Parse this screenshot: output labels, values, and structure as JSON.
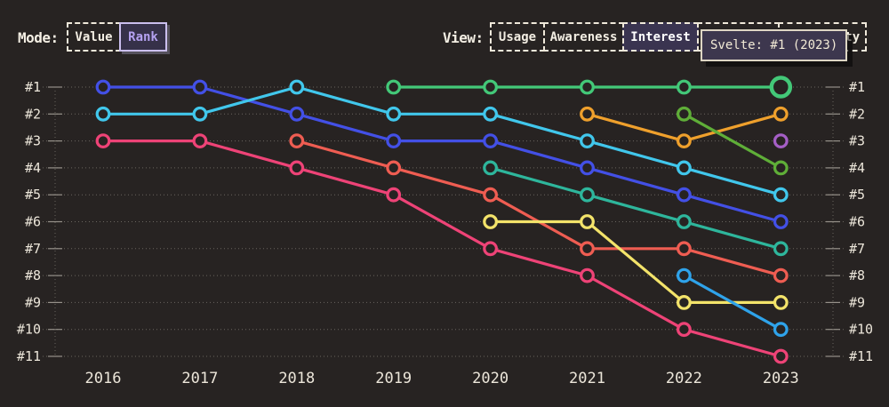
{
  "controls": {
    "mode": {
      "label": "Mode:",
      "options": [
        {
          "label": "Value",
          "selected": false
        },
        {
          "label": "Rank",
          "selected": true
        }
      ]
    },
    "view": {
      "label": "View:",
      "options": [
        {
          "label": "Usage",
          "selected": false
        },
        {
          "label": "Awareness",
          "selected": false
        },
        {
          "label": "Interest",
          "selected": true
        },
        {
          "label": "",
          "selected": false
        },
        {
          "label": "Positivity",
          "selected": false
        }
      ]
    }
  },
  "tooltip": {
    "text": "Svelte: #1 (2023)"
  },
  "colors": {
    "background": "#272322",
    "accent_purple": "#b4a1f0",
    "selected_bg": "#3a3450",
    "tooltip_border": "#ded6c4",
    "grid": "#6a655f",
    "axis_text": "#ece6da"
  },
  "chart_data": {
    "type": "line",
    "subtype": "bump-rank",
    "title": "",
    "xlabel": "",
    "ylabel": "",
    "grid": true,
    "x_labels": [
      "2016",
      "2017",
      "2018",
      "2019",
      "2020",
      "2021",
      "2022",
      "2023"
    ],
    "rank_labels": [
      "#1",
      "#2",
      "#3",
      "#4",
      "#5",
      "#6",
      "#7",
      "#8",
      "#9",
      "#10",
      "#11"
    ],
    "rank_axis_sides": [
      "left",
      "right"
    ],
    "highlighted_point": {
      "label": "Svelte: #1 (2023)",
      "x": "2023",
      "rank": 1
    },
    "series": [
      {
        "name": "blue",
        "color": "#4350e6",
        "ranks": [
          1,
          1,
          2,
          3,
          3,
          4,
          5,
          6
        ]
      },
      {
        "name": "cyan",
        "color": "#41c7ec",
        "ranks": [
          2,
          2,
          1,
          2,
          2,
          3,
          4,
          5
        ]
      },
      {
        "name": "pink",
        "color": "#ee4377",
        "ranks": [
          3,
          3,
          4,
          5,
          7,
          8,
          10,
          11
        ]
      },
      {
        "name": "salmon",
        "color": "#ef5d52",
        "ranks": [
          null,
          null,
          3,
          4,
          5,
          7,
          7,
          8
        ]
      },
      {
        "name": "green-svelte",
        "color": "#43c878",
        "ranks": [
          null,
          null,
          null,
          1,
          1,
          1,
          1,
          1
        ],
        "highlight_last": true
      },
      {
        "name": "teal",
        "color": "#2eb69c",
        "ranks": [
          null,
          null,
          null,
          null,
          4,
          5,
          6,
          7
        ]
      },
      {
        "name": "yellow",
        "color": "#f3e36a",
        "ranks": [
          null,
          null,
          null,
          null,
          6,
          6,
          9,
          9
        ]
      },
      {
        "name": "orange",
        "color": "#efa02c",
        "ranks": [
          null,
          null,
          null,
          null,
          null,
          2,
          3,
          2
        ]
      },
      {
        "name": "lime",
        "color": "#5fae38",
        "ranks": [
          null,
          null,
          null,
          null,
          null,
          null,
          2,
          4
        ]
      },
      {
        "name": "sky-blue",
        "color": "#2fa3ea",
        "ranks": [
          null,
          null,
          null,
          null,
          null,
          null,
          8,
          10
        ]
      },
      {
        "name": "purple",
        "color": "#a55fc6",
        "ranks": [
          null,
          null,
          null,
          null,
          null,
          null,
          null,
          3
        ]
      }
    ]
  }
}
